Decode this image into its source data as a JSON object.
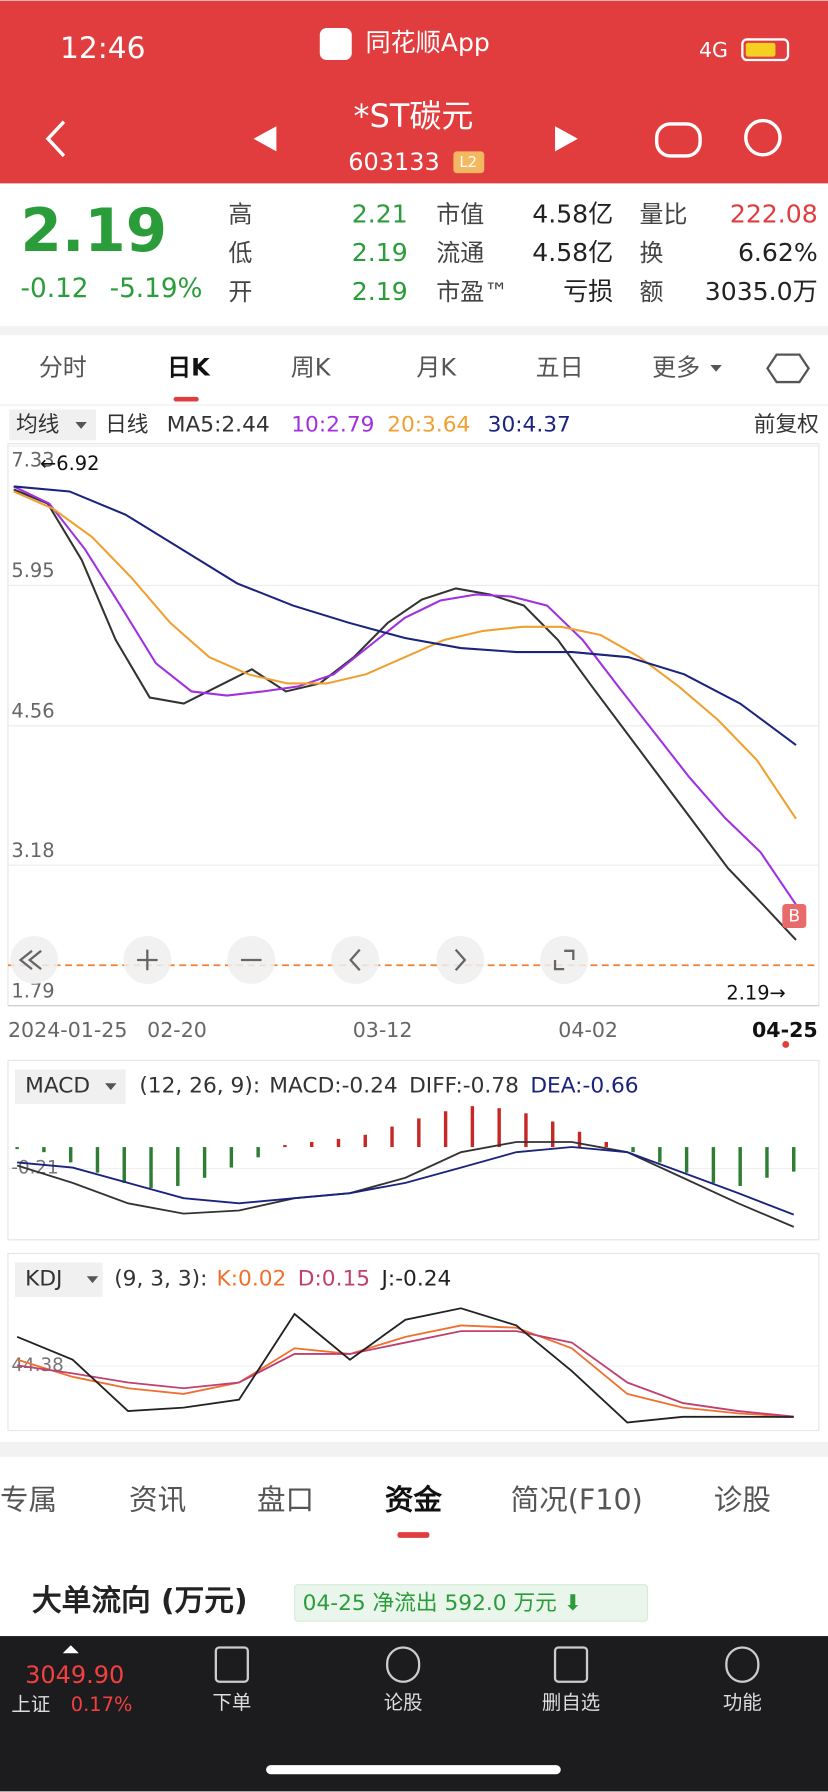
{
  "status": {
    "time": "12:46",
    "app": "同花顺App",
    "network": "4G"
  },
  "header": {
    "title": "*ST碳元",
    "code": "603133",
    "badge": "L2"
  },
  "quote": {
    "price": "2.19",
    "change": "-0.12",
    "change_pct": "-5.19%",
    "stats": [
      {
        "label": "高",
        "value": "2.21"
      },
      {
        "label": "低",
        "value": "2.19"
      },
      {
        "label": "开",
        "value": "2.19"
      },
      {
        "label": "市值",
        "value": "4.58亿"
      },
      {
        "label": "流通",
        "value": "4.58亿"
      },
      {
        "label": "市盈™",
        "value": "亏损"
      },
      {
        "label": "量比",
        "value": "222.08"
      },
      {
        "label": "换",
        "value": "6.62%"
      },
      {
        "label": "额",
        "value": "3035.0万"
      }
    ]
  },
  "tabs": [
    "分时",
    "日K",
    "周K",
    "月K",
    "五日",
    "更多"
  ],
  "indicator": {
    "selector": "均线",
    "period": "日线",
    "adjust": "前复权"
  },
  "chart_data": [
    {
      "type": "line",
      "ylim": [
        1.79,
        7.33
      ],
      "yticks": [
        7.33,
        5.95,
        4.56,
        3.18,
        1.79
      ],
      "x_labels": [
        "2024-01-25",
        "02-20",
        "03-12",
        "04-02",
        "04-25"
      ],
      "annotations": [
        "←6.92",
        "2.19→",
        "B"
      ],
      "current": 2.19,
      "series": [
        {
          "name": "MA5:2.44",
          "color": "#333333",
          "values": [
            6.9,
            6.76,
            6.2,
            5.41,
            4.84,
            4.78,
            4.95,
            5.12,
            4.9,
            4.98,
            5.24,
            5.58,
            5.81,
            5.92,
            5.86,
            5.75,
            5.41,
            4.95,
            4.5,
            4.05,
            3.6,
            3.15,
            2.8,
            2.44
          ]
        },
        {
          "name": "10:2.79",
          "color": "#a030e0",
          "values": [
            6.93,
            6.76,
            6.31,
            5.75,
            5.18,
            4.9,
            4.86,
            4.9,
            4.95,
            5.07,
            5.35,
            5.63,
            5.8,
            5.86,
            5.84,
            5.75,
            5.41,
            4.95,
            4.5,
            4.05,
            3.65,
            3.31,
            2.79
          ]
        },
        {
          "name": "20:3.64",
          "color": "#f0a030",
          "values": [
            6.88,
            6.71,
            6.43,
            6.03,
            5.58,
            5.24,
            5.07,
            4.98,
            4.98,
            5.07,
            5.24,
            5.41,
            5.5,
            5.54,
            5.54,
            5.46,
            5.24,
            4.95,
            4.62,
            4.22,
            3.64
          ]
        },
        {
          "name": "30:4.37",
          "color": "#1a237e",
          "values": [
            6.93,
            6.88,
            6.65,
            6.31,
            5.97,
            5.75,
            5.58,
            5.43,
            5.33,
            5.29,
            5.29,
            5.24,
            5.07,
            4.78,
            4.37
          ]
        }
      ]
    },
    {
      "type": "macd",
      "title": "MACD",
      "params": "(12, 26, 9):",
      "ylim": [
        -0.85,
        0.4
      ],
      "yticks": [
        -0.21
      ],
      "series": [
        {
          "name": "MACD:-0.24",
          "type": "bar",
          "color": "#2e7d32",
          "up_color": "#c62828",
          "values": [
            -0.02,
            -0.05,
            -0.15,
            -0.25,
            -0.35,
            -0.4,
            -0.38,
            -0.3,
            -0.2,
            -0.1,
            0.02,
            0.05,
            0.08,
            0.12,
            0.2,
            0.28,
            0.35,
            0.4,
            0.38,
            0.33,
            0.25,
            0.15,
            0.05,
            -0.05,
            -0.15,
            -0.25,
            -0.35,
            -0.38,
            -0.3,
            -0.24
          ]
        },
        {
          "name": "DIFF:-0.78",
          "type": "line",
          "color": "#333333",
          "values": [
            -0.18,
            -0.35,
            -0.55,
            -0.65,
            -0.62,
            -0.5,
            -0.45,
            -0.3,
            -0.05,
            0.05,
            0.05,
            -0.05,
            -0.3,
            -0.55,
            -0.78
          ]
        },
        {
          "name": "DEA:-0.66",
          "type": "line",
          "color": "#1a237e",
          "values": [
            -0.15,
            -0.2,
            -0.35,
            -0.5,
            -0.55,
            -0.5,
            -0.45,
            -0.35,
            -0.2,
            -0.05,
            0.0,
            -0.05,
            -0.25,
            -0.45,
            -0.66
          ]
        }
      ]
    },
    {
      "type": "kdj",
      "title": "KDJ",
      "params": "(9, 3, 3):",
      "ylim": [
        -5,
        105
      ],
      "yticks": [
        44.38
      ],
      "series": [
        {
          "name": "K:0.02",
          "type": "line",
          "color": "#f07030",
          "values": [
            50,
            35,
            25,
            20,
            30,
            60,
            55,
            70,
            80,
            78,
            60,
            20,
            8,
            3,
            0.02
          ]
        },
        {
          "name": "D:0.15",
          "type": "line",
          "color": "#c04070",
          "values": [
            45,
            38,
            30,
            25,
            30,
            55,
            55,
            65,
            75,
            75,
            65,
            30,
            12,
            5,
            0.15
          ]
        },
        {
          "name": "J:-0.24",
          "type": "line",
          "color": "#222222",
          "values": [
            70,
            50,
            5,
            8,
            15,
            90,
            50,
            85,
            95,
            80,
            40,
            -5,
            0,
            0,
            -0.24
          ]
        }
      ]
    }
  ],
  "tabs2": [
    "专属",
    "资讯",
    "盘口",
    "资金",
    "简况(F10)",
    "诊股"
  ],
  "flow": {
    "title": "大单流向 (万元)",
    "badge": "04-25 净流出 592.0 万元 ⬇"
  },
  "footer": {
    "index_value": "3049.90",
    "index_name": "上证",
    "index_pct": "0.17%",
    "nav": [
      "下单",
      "论股",
      "删自选",
      "功能"
    ]
  }
}
